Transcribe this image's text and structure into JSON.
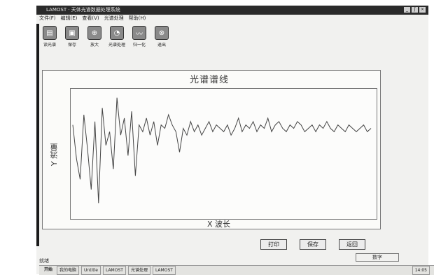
{
  "window": {
    "title": "LAMOST · 天体光谱数据处理系统",
    "controls": [
      "_",
      "ʃ",
      "×"
    ]
  },
  "menu": [
    "文件(F)",
    "编辑(E)",
    "查看(V)",
    "光谱处理",
    "帮助(H)"
  ],
  "toolbar": [
    {
      "label": "读光谱",
      "icon": "open-spectrum-icon",
      "glyph": "▤"
    },
    {
      "label": "保存",
      "icon": "save-icon",
      "glyph": "▣"
    },
    {
      "label": "放大",
      "icon": "zoom-icon",
      "glyph": "⊕"
    },
    {
      "label": "光谱处理",
      "icon": "process-icon",
      "glyph": "◔"
    },
    {
      "label": "归一化",
      "icon": "normalize-icon",
      "glyph": "〰"
    },
    {
      "label": "退出",
      "icon": "exit-icon",
      "glyph": "⊗"
    }
  ],
  "chart_data": {
    "type": "line",
    "title": "光谱谱线",
    "xlabel": "X 波长",
    "ylabel": "Y 流量",
    "series": [
      {
        "values": [
          0.4,
          -0.6,
          -1.2,
          0.7,
          -0.3,
          -1.5,
          0.5,
          -1.9,
          0.9,
          -0.2,
          0.2,
          -0.9,
          1.2,
          0.1,
          0.6,
          -0.5,
          0.8,
          -1.1,
          0.4,
          0.2,
          0.6,
          0.1,
          0.5,
          -0.2,
          0.4,
          0.3,
          0.7,
          0.4,
          0.2,
          -0.4,
          0.3,
          0.1,
          0.5,
          0.2,
          0.4,
          0.1,
          0.3,
          0.5,
          0.2,
          0.4,
          0.3,
          0.2,
          0.4,
          0.1,
          0.3,
          0.6,
          0.2,
          0.4,
          0.3,
          0.5,
          0.2,
          0.4,
          0.3,
          0.6,
          0.2,
          0.4,
          0.5,
          0.3,
          0.2,
          0.4,
          0.3,
          0.5,
          0.4,
          0.2,
          0.3,
          0.4,
          0.2,
          0.4,
          0.3,
          0.5,
          0.3,
          0.2,
          0.4,
          0.3,
          0.2,
          0.4,
          0.3,
          0.2,
          0.3,
          0.4,
          0.2,
          0.3
        ]
      }
    ],
    "grid": false
  },
  "buttons": {
    "print": "打印",
    "save": "保存",
    "back": "返回"
  },
  "status": {
    "left": "就绪",
    "right": "数字"
  },
  "taskbar": {
    "start": "开始",
    "tasks": [
      "我的电脑",
      "Untitle",
      "LAMOST",
      "光谱处理",
      "LAMOST"
    ],
    "clock": "14:05"
  }
}
